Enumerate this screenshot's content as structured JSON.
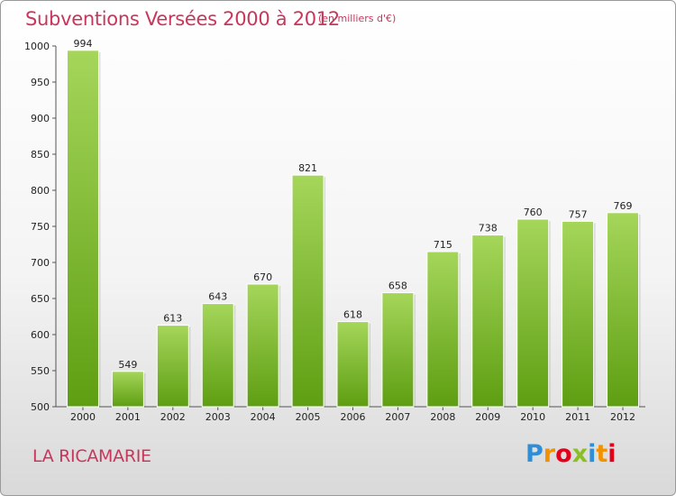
{
  "header": {
    "title": "Subventions Versées 2000 à 2012",
    "unit": "(en milliers d'€)"
  },
  "footer": {
    "commune": "LA RICAMARIE",
    "logo_text": "Proxiti",
    "logo_colors": [
      "#2f8fd6",
      "#f39200",
      "#e2001a",
      "#8cbf26",
      "#2f8fd6",
      "#f39200",
      "#e2001a"
    ]
  },
  "colors": {
    "bar_top": "#a5d65a",
    "bar_bottom": "#5e9e12",
    "title": "#c8365c"
  },
  "chart_data": {
    "type": "bar",
    "categories": [
      "2000",
      "2001",
      "2002",
      "2003",
      "2004",
      "2005",
      "2006",
      "2007",
      "2008",
      "2009",
      "2010",
      "2011",
      "2012"
    ],
    "values": [
      994,
      549,
      613,
      643,
      670,
      821,
      618,
      658,
      715,
      738,
      760,
      757,
      769
    ],
    "ylim": [
      500,
      1000
    ],
    "yticks": [
      500,
      550,
      600,
      650,
      700,
      750,
      800,
      850,
      900,
      950,
      1000
    ],
    "grid": false,
    "xlabel": "",
    "ylabel": ""
  }
}
